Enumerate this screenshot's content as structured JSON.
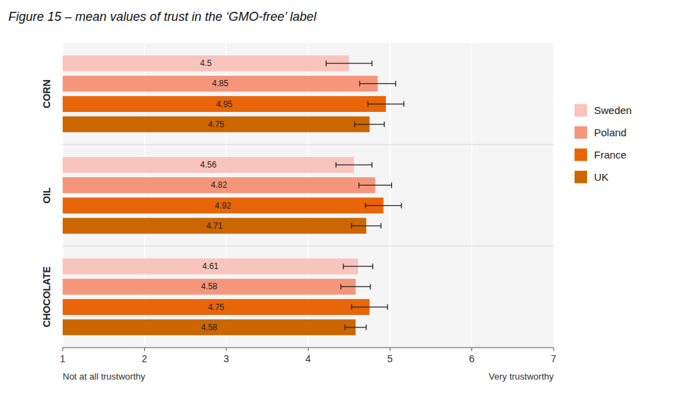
{
  "chart_data": {
    "type": "bar",
    "orientation": "horizontal",
    "title": "Figure 15 – mean values of trust in the ‘GMO-free’ label",
    "annotations": [
      "Not at all trustworthy",
      "Very trustworthy"
    ],
    "categories": [
      "CORN",
      "OIL",
      "CHOCOLATE"
    ],
    "series": [
      {
        "name": "Sweden",
        "color": "#f9c4bc",
        "values": [
          4.5,
          4.56,
          4.61
        ],
        "errors": [
          0.28,
          0.22,
          0.18
        ]
      },
      {
        "name": "Poland",
        "color": "#f5967a",
        "values": [
          4.85,
          4.82,
          4.58
        ],
        "errors": [
          0.22,
          0.2,
          0.18
        ]
      },
      {
        "name": "France",
        "color": "#e8650a",
        "values": [
          4.95,
          4.92,
          4.75
        ],
        "errors": [
          0.22,
          0.22,
          0.22
        ]
      },
      {
        "name": "UK",
        "color": "#cc6600",
        "values": [
          4.75,
          4.71,
          4.58
        ],
        "errors": [
          0.18,
          0.18,
          0.13
        ]
      }
    ],
    "xlim": [
      1,
      7
    ],
    "xticks": [
      1,
      2,
      3,
      4,
      5,
      6,
      7
    ],
    "grid": true,
    "legend": "right",
    "data_labels": true
  }
}
